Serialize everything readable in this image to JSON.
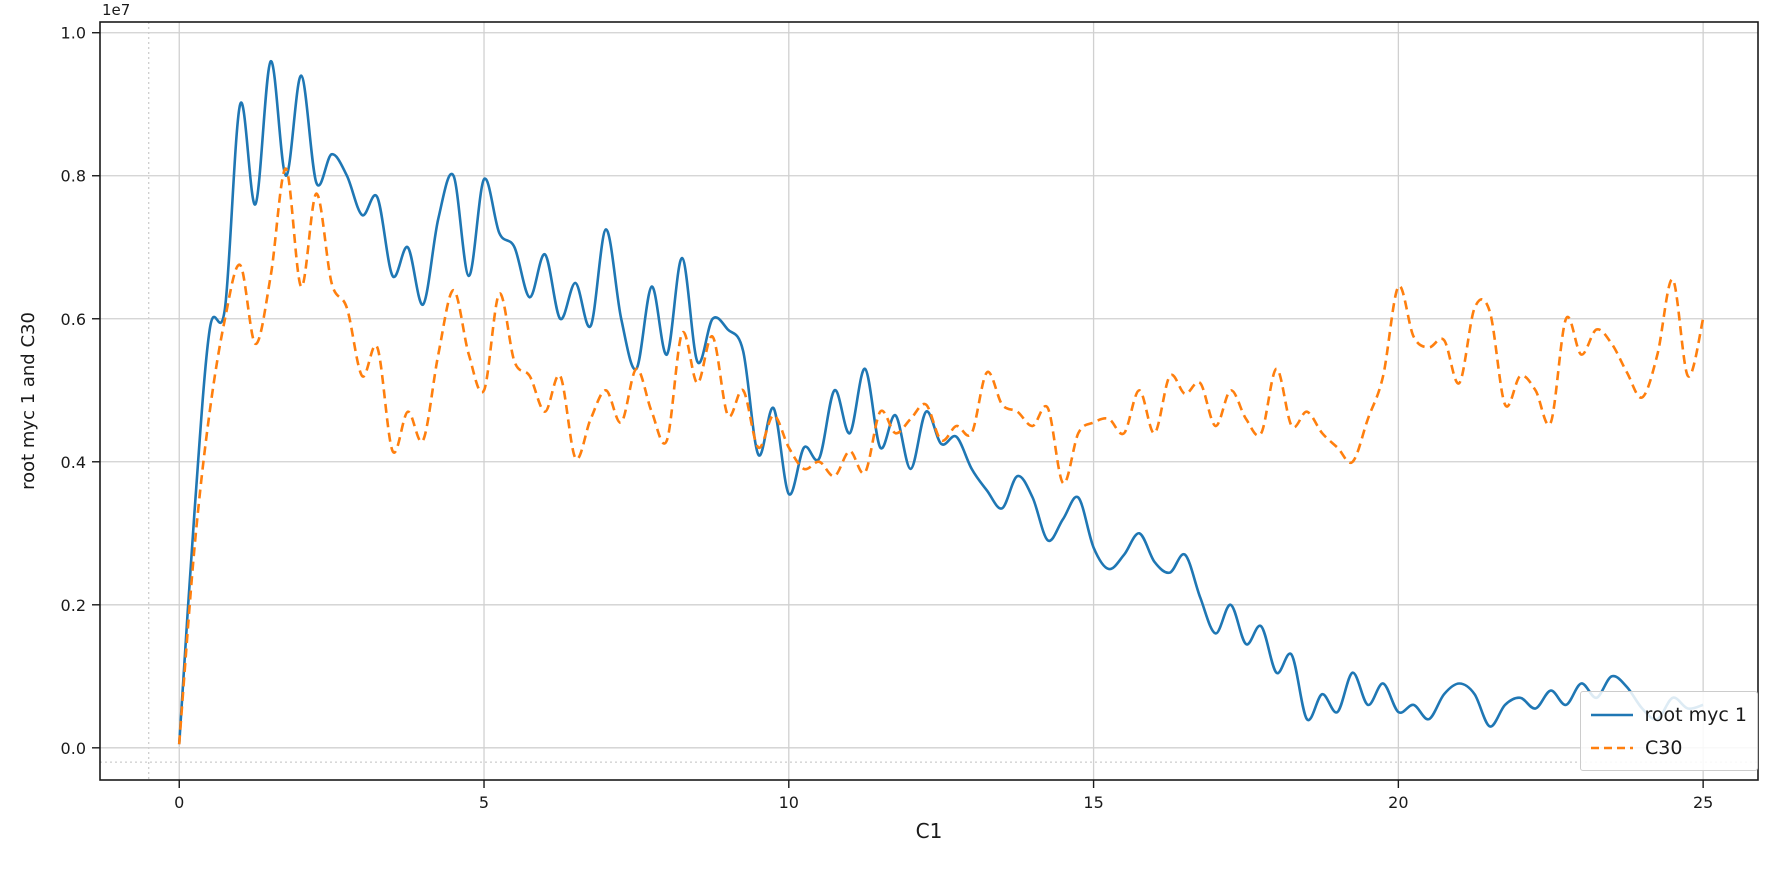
{
  "chart_data": {
    "type": "line",
    "title": "",
    "xlabel": "C1",
    "ylabel": "root myc 1 and C30",
    "y_offset_text": "1e7",
    "y_scale_note": "y values are in units of 1e7",
    "xlim": [
      -1.3,
      25.9
    ],
    "ylim": [
      -0.045,
      1.015
    ],
    "x_ticks": [
      0,
      5,
      10,
      15,
      20,
      25
    ],
    "x_tick_labels": [
      "0",
      "5",
      "10",
      "15",
      "20",
      "25"
    ],
    "y_ticks": [
      0.0,
      0.2,
      0.4,
      0.6,
      0.8,
      1.0
    ],
    "y_tick_labels": [
      "0.0",
      "0.2",
      "0.4",
      "0.6",
      "0.8",
      "1.0"
    ],
    "grid": true,
    "minor_gridlines": {
      "x": [
        -0.5
      ],
      "y": [
        -0.02
      ]
    },
    "legend": {
      "position": "lower right"
    },
    "x_sampling": {
      "start": 0,
      "step": 0.25,
      "count": 101
    },
    "series": [
      {
        "name": "root myc 1",
        "color": "#1f77b4",
        "style": "solid",
        "values": [
          0.005,
          0.33,
          0.585,
          0.615,
          0.9,
          0.76,
          0.96,
          0.8,
          0.94,
          0.79,
          0.83,
          0.8,
          0.745,
          0.77,
          0.66,
          0.7,
          0.62,
          0.74,
          0.8,
          0.66,
          0.795,
          0.72,
          0.7,
          0.63,
          0.69,
          0.6,
          0.65,
          0.59,
          0.725,
          0.6,
          0.53,
          0.645,
          0.55,
          0.685,
          0.54,
          0.6,
          0.585,
          0.555,
          0.41,
          0.475,
          0.355,
          0.42,
          0.405,
          0.5,
          0.44,
          0.53,
          0.42,
          0.465,
          0.39,
          0.47,
          0.425,
          0.435,
          0.39,
          0.36,
          0.335,
          0.38,
          0.35,
          0.29,
          0.32,
          0.35,
          0.28,
          0.25,
          0.27,
          0.3,
          0.26,
          0.245,
          0.27,
          0.21,
          0.16,
          0.2,
          0.145,
          0.17,
          0.105,
          0.13,
          0.04,
          0.075,
          0.05,
          0.105,
          0.06,
          0.09,
          0.05,
          0.06,
          0.04,
          0.075,
          0.09,
          0.075,
          0.03,
          0.06,
          0.07,
          0.055,
          0.08,
          0.06,
          0.09,
          0.07,
          0.1,
          0.085,
          0.055,
          0.04,
          0.07,
          0.055,
          0.06
        ]
      },
      {
        "name": "C30",
        "color": "#ff7f0e",
        "style": "dashed",
        "values": [
          0.005,
          0.28,
          0.47,
          0.6,
          0.675,
          0.565,
          0.66,
          0.81,
          0.645,
          0.775,
          0.65,
          0.615,
          0.52,
          0.56,
          0.415,
          0.47,
          0.43,
          0.55,
          0.64,
          0.55,
          0.5,
          0.635,
          0.54,
          0.52,
          0.47,
          0.52,
          0.405,
          0.46,
          0.5,
          0.455,
          0.53,
          0.47,
          0.43,
          0.58,
          0.51,
          0.575,
          0.465,
          0.5,
          0.42,
          0.465,
          0.42,
          0.39,
          0.4,
          0.38,
          0.415,
          0.385,
          0.47,
          0.44,
          0.46,
          0.48,
          0.43,
          0.45,
          0.44,
          0.525,
          0.48,
          0.47,
          0.45,
          0.475,
          0.37,
          0.44,
          0.455,
          0.46,
          0.44,
          0.5,
          0.44,
          0.52,
          0.495,
          0.51,
          0.45,
          0.5,
          0.46,
          0.44,
          0.53,
          0.45,
          0.47,
          0.44,
          0.42,
          0.4,
          0.46,
          0.52,
          0.645,
          0.575,
          0.56,
          0.57,
          0.51,
          0.615,
          0.61,
          0.48,
          0.52,
          0.5,
          0.455,
          0.6,
          0.55,
          0.585,
          0.565,
          0.525,
          0.49,
          0.55,
          0.655,
          0.52,
          0.6
        ]
      }
    ],
    "style": {
      "grid_color": "#d0d0d0",
      "minor_grid_color": "#c0c0c0",
      "spine_color": "#1a1a1a",
      "text_color": "#1a1a1a",
      "line_width": 2.6
    }
  }
}
